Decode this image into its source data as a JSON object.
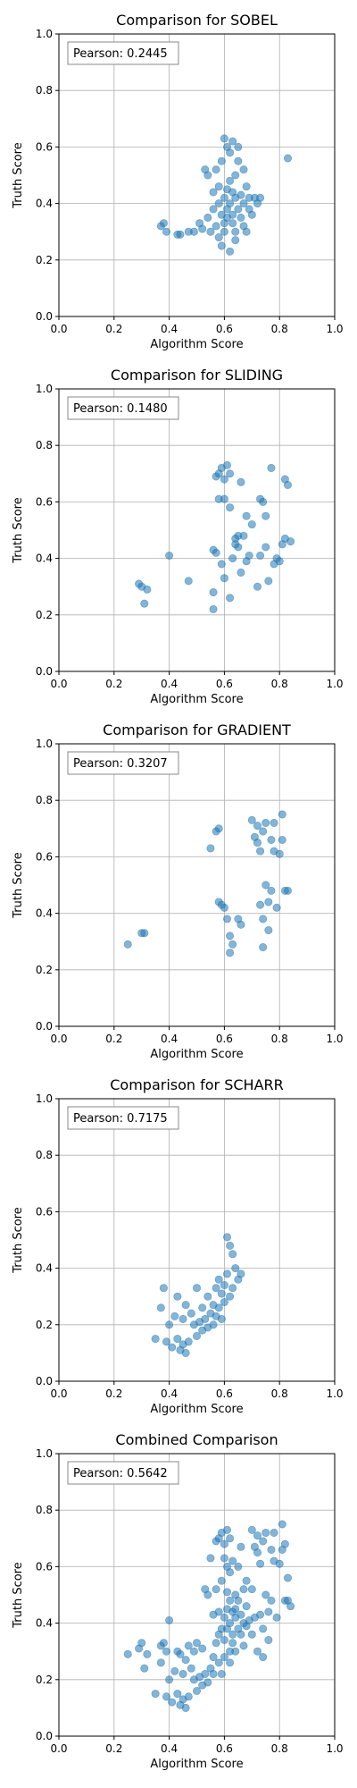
{
  "chart_data": [
    {
      "type": "scatter",
      "title": "Comparison for SOBEL",
      "xlabel": "Algorithm Score",
      "ylabel": "Truth Score",
      "xlim": [
        0,
        1
      ],
      "ylim": [
        0,
        1
      ],
      "xticks": [
        "0.0",
        "0.2",
        "0.4",
        "0.6",
        "0.8",
        "1.0"
      ],
      "yticks": [
        "0.0",
        "0.2",
        "0.4",
        "0.6",
        "0.8",
        "1.0"
      ],
      "grid": true,
      "annotation": "Pearson: 0.2445",
      "annotation_position": "top-left",
      "color": "#1f77b4",
      "points": [
        [
          0.37,
          0.32
        ],
        [
          0.38,
          0.33
        ],
        [
          0.39,
          0.3
        ],
        [
          0.43,
          0.29
        ],
        [
          0.44,
          0.29
        ],
        [
          0.47,
          0.3
        ],
        [
          0.49,
          0.3
        ],
        [
          0.51,
          0.33
        ],
        [
          0.52,
          0.31
        ],
        [
          0.53,
          0.52
        ],
        [
          0.54,
          0.5
        ],
        [
          0.54,
          0.35
        ],
        [
          0.55,
          0.3
        ],
        [
          0.56,
          0.38
        ],
        [
          0.56,
          0.44
        ],
        [
          0.57,
          0.52
        ],
        [
          0.57,
          0.32
        ],
        [
          0.58,
          0.28
        ],
        [
          0.58,
          0.4
        ],
        [
          0.58,
          0.46
        ],
        [
          0.59,
          0.55
        ],
        [
          0.59,
          0.36
        ],
        [
          0.59,
          0.25
        ],
        [
          0.6,
          0.63
        ],
        [
          0.6,
          0.42
        ],
        [
          0.6,
          0.33
        ],
        [
          0.6,
          0.3
        ],
        [
          0.61,
          0.6
        ],
        [
          0.61,
          0.45
        ],
        [
          0.61,
          0.38
        ],
        [
          0.61,
          0.35
        ],
        [
          0.62,
          0.58
        ],
        [
          0.62,
          0.48
        ],
        [
          0.62,
          0.4
        ],
        [
          0.62,
          0.23
        ],
        [
          0.63,
          0.62
        ],
        [
          0.63,
          0.44
        ],
        [
          0.63,
          0.36
        ],
        [
          0.63,
          0.33
        ],
        [
          0.64,
          0.5
        ],
        [
          0.64,
          0.42
        ],
        [
          0.64,
          0.3
        ],
        [
          0.64,
          0.27
        ],
        [
          0.65,
          0.6
        ],
        [
          0.65,
          0.55
        ],
        [
          0.65,
          0.38
        ],
        [
          0.66,
          0.43
        ],
        [
          0.66,
          0.35
        ],
        [
          0.67,
          0.52
        ],
        [
          0.67,
          0.4
        ],
        [
          0.67,
          0.32
        ],
        [
          0.68,
          0.46
        ],
        [
          0.68,
          0.3
        ],
        [
          0.69,
          0.38
        ],
        [
          0.69,
          0.42
        ],
        [
          0.7,
          0.36
        ],
        [
          0.71,
          0.42
        ],
        [
          0.72,
          0.4
        ],
        [
          0.73,
          0.42
        ],
        [
          0.83,
          0.56
        ]
      ]
    },
    {
      "type": "scatter",
      "title": "Comparison for SLIDING",
      "xlabel": "Algorithm Score",
      "ylabel": "Truth Score",
      "xlim": [
        0,
        1
      ],
      "ylim": [
        0,
        1
      ],
      "xticks": [
        "0.0",
        "0.2",
        "0.4",
        "0.6",
        "0.8",
        "1.0"
      ],
      "yticks": [
        "0.0",
        "0.2",
        "0.4",
        "0.6",
        "0.8",
        "1.0"
      ],
      "grid": true,
      "annotation": "Pearson: 0.1480",
      "annotation_position": "top-left",
      "color": "#1f77b4",
      "points": [
        [
          0.29,
          0.31
        ],
        [
          0.3,
          0.3
        ],
        [
          0.31,
          0.24
        ],
        [
          0.32,
          0.29
        ],
        [
          0.4,
          0.41
        ],
        [
          0.47,
          0.32
        ],
        [
          0.56,
          0.28
        ],
        [
          0.56,
          0.43
        ],
        [
          0.56,
          0.22
        ],
        [
          0.57,
          0.69
        ],
        [
          0.57,
          0.42
        ],
        [
          0.58,
          0.7
        ],
        [
          0.58,
          0.61
        ],
        [
          0.59,
          0.38
        ],
        [
          0.59,
          0.72
        ],
        [
          0.6,
          0.68
        ],
        [
          0.6,
          0.33
        ],
        [
          0.6,
          0.61
        ],
        [
          0.61,
          0.73
        ],
        [
          0.62,
          0.7
        ],
        [
          0.62,
          0.58
        ],
        [
          0.62,
          0.26
        ],
        [
          0.63,
          0.4
        ],
        [
          0.64,
          0.45
        ],
        [
          0.64,
          0.47
        ],
        [
          0.65,
          0.48
        ],
        [
          0.65,
          0.44
        ],
        [
          0.66,
          0.67
        ],
        [
          0.66,
          0.35
        ],
        [
          0.67,
          0.48
        ],
        [
          0.68,
          0.55
        ],
        [
          0.68,
          0.39
        ],
        [
          0.69,
          0.41
        ],
        [
          0.7,
          0.52
        ],
        [
          0.72,
          0.3
        ],
        [
          0.73,
          0.41
        ],
        [
          0.73,
          0.61
        ],
        [
          0.74,
          0.6
        ],
        [
          0.75,
          0.44
        ],
        [
          0.75,
          0.55
        ],
        [
          0.76,
          0.32
        ],
        [
          0.77,
          0.72
        ],
        [
          0.78,
          0.38
        ],
        [
          0.79,
          0.4
        ],
        [
          0.8,
          0.39
        ],
        [
          0.81,
          0.45
        ],
        [
          0.82,
          0.47
        ],
        [
          0.82,
          0.68
        ],
        [
          0.83,
          0.66
        ],
        [
          0.84,
          0.46
        ]
      ]
    },
    {
      "type": "scatter",
      "title": "Comparison for GRADIENT",
      "xlabel": "Algorithm Score",
      "ylabel": "Truth Score",
      "xlim": [
        0,
        1
      ],
      "ylim": [
        0,
        1
      ],
      "xticks": [
        "0.0",
        "0.2",
        "0.4",
        "0.6",
        "0.8",
        "1.0"
      ],
      "yticks": [
        "0.0",
        "0.2",
        "0.4",
        "0.6",
        "0.8",
        "1.0"
      ],
      "grid": true,
      "annotation": "Pearson: 0.3207",
      "annotation_position": "top-left",
      "color": "#1f77b4",
      "points": [
        [
          0.25,
          0.29
        ],
        [
          0.3,
          0.33
        ],
        [
          0.31,
          0.33
        ],
        [
          0.55,
          0.63
        ],
        [
          0.57,
          0.69
        ],
        [
          0.58,
          0.7
        ],
        [
          0.58,
          0.44
        ],
        [
          0.59,
          0.43
        ],
        [
          0.6,
          0.42
        ],
        [
          0.61,
          0.38
        ],
        [
          0.62,
          0.32
        ],
        [
          0.62,
          0.26
        ],
        [
          0.63,
          0.29
        ],
        [
          0.65,
          0.38
        ],
        [
          0.66,
          0.36
        ],
        [
          0.7,
          0.73
        ],
        [
          0.71,
          0.67
        ],
        [
          0.72,
          0.65
        ],
        [
          0.72,
          0.71
        ],
        [
          0.73,
          0.43
        ],
        [
          0.73,
          0.62
        ],
        [
          0.74,
          0.69
        ],
        [
          0.74,
          0.38
        ],
        [
          0.74,
          0.28
        ],
        [
          0.75,
          0.5
        ],
        [
          0.75,
          0.72
        ],
        [
          0.76,
          0.44
        ],
        [
          0.76,
          0.34
        ],
        [
          0.77,
          0.66
        ],
        [
          0.77,
          0.48
        ],
        [
          0.78,
          0.72
        ],
        [
          0.78,
          0.62
        ],
        [
          0.79,
          0.42
        ],
        [
          0.8,
          0.61
        ],
        [
          0.81,
          0.75
        ],
        [
          0.81,
          0.66
        ],
        [
          0.82,
          0.48
        ],
        [
          0.83,
          0.48
        ]
      ]
    },
    {
      "type": "scatter",
      "title": "Comparison for SCHARR",
      "xlabel": "Algorithm Score",
      "ylabel": "Truth Score",
      "xlim": [
        0,
        1
      ],
      "ylim": [
        0,
        1
      ],
      "xticks": [
        "0.0",
        "0.2",
        "0.4",
        "0.6",
        "0.8",
        "1.0"
      ],
      "yticks": [
        "0.0",
        "0.2",
        "0.4",
        "0.6",
        "0.8",
        "1.0"
      ],
      "grid": true,
      "annotation": "Pearson: 0.7175",
      "annotation_position": "top-left",
      "color": "#1f77b4",
      "points": [
        [
          0.35,
          0.15
        ],
        [
          0.37,
          0.26
        ],
        [
          0.38,
          0.33
        ],
        [
          0.39,
          0.14
        ],
        [
          0.4,
          0.2
        ],
        [
          0.41,
          0.12
        ],
        [
          0.42,
          0.23
        ],
        [
          0.43,
          0.3
        ],
        [
          0.43,
          0.15
        ],
        [
          0.44,
          0.11
        ],
        [
          0.45,
          0.22
        ],
        [
          0.45,
          0.13
        ],
        [
          0.46,
          0.27
        ],
        [
          0.46,
          0.1
        ],
        [
          0.47,
          0.14
        ],
        [
          0.48,
          0.24
        ],
        [
          0.49,
          0.2
        ],
        [
          0.5,
          0.16
        ],
        [
          0.5,
          0.33
        ],
        [
          0.51,
          0.21
        ],
        [
          0.52,
          0.18
        ],
        [
          0.52,
          0.26
        ],
        [
          0.53,
          0.22
        ],
        [
          0.54,
          0.19
        ],
        [
          0.54,
          0.3
        ],
        [
          0.55,
          0.24
        ],
        [
          0.56,
          0.27
        ],
        [
          0.56,
          0.2
        ],
        [
          0.57,
          0.33
        ],
        [
          0.57,
          0.23
        ],
        [
          0.58,
          0.26
        ],
        [
          0.58,
          0.36
        ],
        [
          0.59,
          0.31
        ],
        [
          0.59,
          0.22
        ],
        [
          0.6,
          0.34
        ],
        [
          0.6,
          0.28
        ],
        [
          0.61,
          0.38
        ],
        [
          0.61,
          0.51
        ],
        [
          0.62,
          0.3
        ],
        [
          0.62,
          0.48
        ],
        [
          0.63,
          0.33
        ],
        [
          0.63,
          0.45
        ],
        [
          0.64,
          0.4
        ],
        [
          0.65,
          0.36
        ],
        [
          0.66,
          0.38
        ]
      ]
    },
    {
      "type": "scatter",
      "title": "Combined Comparison",
      "xlabel": "Algorithm Score",
      "ylabel": "Truth Score",
      "xlim": [
        0,
        1
      ],
      "ylim": [
        0,
        1
      ],
      "xticks": [
        "0.0",
        "0.2",
        "0.4",
        "0.6",
        "0.8",
        "1.0"
      ],
      "yticks": [
        "0.0",
        "0.2",
        "0.4",
        "0.6",
        "0.8",
        "1.0"
      ],
      "grid": true,
      "annotation": "Pearson: 0.5642",
      "annotation_position": "top-left",
      "color": "#1f77b4",
      "points": [
        [
          0.25,
          0.29
        ],
        [
          0.29,
          0.31
        ],
        [
          0.3,
          0.33
        ],
        [
          0.31,
          0.24
        ],
        [
          0.32,
          0.29
        ],
        [
          0.35,
          0.15
        ],
        [
          0.37,
          0.32
        ],
        [
          0.37,
          0.26
        ],
        [
          0.38,
          0.33
        ],
        [
          0.39,
          0.3
        ],
        [
          0.39,
          0.14
        ],
        [
          0.4,
          0.41
        ],
        [
          0.4,
          0.2
        ],
        [
          0.41,
          0.12
        ],
        [
          0.42,
          0.23
        ],
        [
          0.43,
          0.3
        ],
        [
          0.43,
          0.15
        ],
        [
          0.44,
          0.29
        ],
        [
          0.44,
          0.11
        ],
        [
          0.45,
          0.22
        ],
        [
          0.45,
          0.13
        ],
        [
          0.46,
          0.27
        ],
        [
          0.46,
          0.1
        ],
        [
          0.47,
          0.32
        ],
        [
          0.47,
          0.14
        ],
        [
          0.48,
          0.24
        ],
        [
          0.49,
          0.3
        ],
        [
          0.49,
          0.2
        ],
        [
          0.5,
          0.16
        ],
        [
          0.5,
          0.33
        ],
        [
          0.51,
          0.21
        ],
        [
          0.52,
          0.31
        ],
        [
          0.52,
          0.18
        ],
        [
          0.53,
          0.52
        ],
        [
          0.53,
          0.22
        ],
        [
          0.54,
          0.5
        ],
        [
          0.54,
          0.19
        ],
        [
          0.55,
          0.63
        ],
        [
          0.55,
          0.24
        ],
        [
          0.56,
          0.28
        ],
        [
          0.56,
          0.43
        ],
        [
          0.56,
          0.22
        ],
        [
          0.57,
          0.69
        ],
        [
          0.57,
          0.52
        ],
        [
          0.57,
          0.33
        ],
        [
          0.58,
          0.7
        ],
        [
          0.58,
          0.44
        ],
        [
          0.58,
          0.26
        ],
        [
          0.58,
          0.36
        ],
        [
          0.59,
          0.72
        ],
        [
          0.59,
          0.55
        ],
        [
          0.59,
          0.38
        ],
        [
          0.59,
          0.22
        ],
        [
          0.6,
          0.68
        ],
        [
          0.6,
          0.63
        ],
        [
          0.6,
          0.42
        ],
        [
          0.6,
          0.34
        ],
        [
          0.6,
          0.28
        ],
        [
          0.61,
          0.73
        ],
        [
          0.61,
          0.6
        ],
        [
          0.61,
          0.45
        ],
        [
          0.61,
          0.38
        ],
        [
          0.61,
          0.51
        ],
        [
          0.62,
          0.7
        ],
        [
          0.62,
          0.58
        ],
        [
          0.62,
          0.48
        ],
        [
          0.62,
          0.4
        ],
        [
          0.62,
          0.3
        ],
        [
          0.62,
          0.26
        ],
        [
          0.63,
          0.62
        ],
        [
          0.63,
          0.44
        ],
        [
          0.63,
          0.36
        ],
        [
          0.63,
          0.33
        ],
        [
          0.64,
          0.5
        ],
        [
          0.64,
          0.45
        ],
        [
          0.64,
          0.42
        ],
        [
          0.64,
          0.3
        ],
        [
          0.65,
          0.6
        ],
        [
          0.65,
          0.48
        ],
        [
          0.65,
          0.38
        ],
        [
          0.66,
          0.67
        ],
        [
          0.66,
          0.43
        ],
        [
          0.66,
          0.36
        ],
        [
          0.67,
          0.52
        ],
        [
          0.67,
          0.4
        ],
        [
          0.67,
          0.32
        ],
        [
          0.68,
          0.55
        ],
        [
          0.68,
          0.46
        ],
        [
          0.68,
          0.39
        ],
        [
          0.69,
          0.41
        ],
        [
          0.7,
          0.73
        ],
        [
          0.7,
          0.52
        ],
        [
          0.7,
          0.36
        ],
        [
          0.71,
          0.67
        ],
        [
          0.71,
          0.42
        ],
        [
          0.72,
          0.65
        ],
        [
          0.72,
          0.71
        ],
        [
          0.72,
          0.3
        ],
        [
          0.73,
          0.43
        ],
        [
          0.73,
          0.61
        ],
        [
          0.74,
          0.69
        ],
        [
          0.74,
          0.38
        ],
        [
          0.74,
          0.28
        ],
        [
          0.75,
          0.5
        ],
        [
          0.75,
          0.72
        ],
        [
          0.76,
          0.44
        ],
        [
          0.76,
          0.34
        ],
        [
          0.77,
          0.66
        ],
        [
          0.77,
          0.48
        ],
        [
          0.78,
          0.72
        ],
        [
          0.78,
          0.62
        ],
        [
          0.79,
          0.42
        ],
        [
          0.8,
          0.61
        ],
        [
          0.81,
          0.75
        ],
        [
          0.81,
          0.66
        ],
        [
          0.82,
          0.48
        ],
        [
          0.82,
          0.68
        ],
        [
          0.83,
          0.56
        ],
        [
          0.83,
          0.48
        ],
        [
          0.84,
          0.46
        ]
      ]
    }
  ]
}
